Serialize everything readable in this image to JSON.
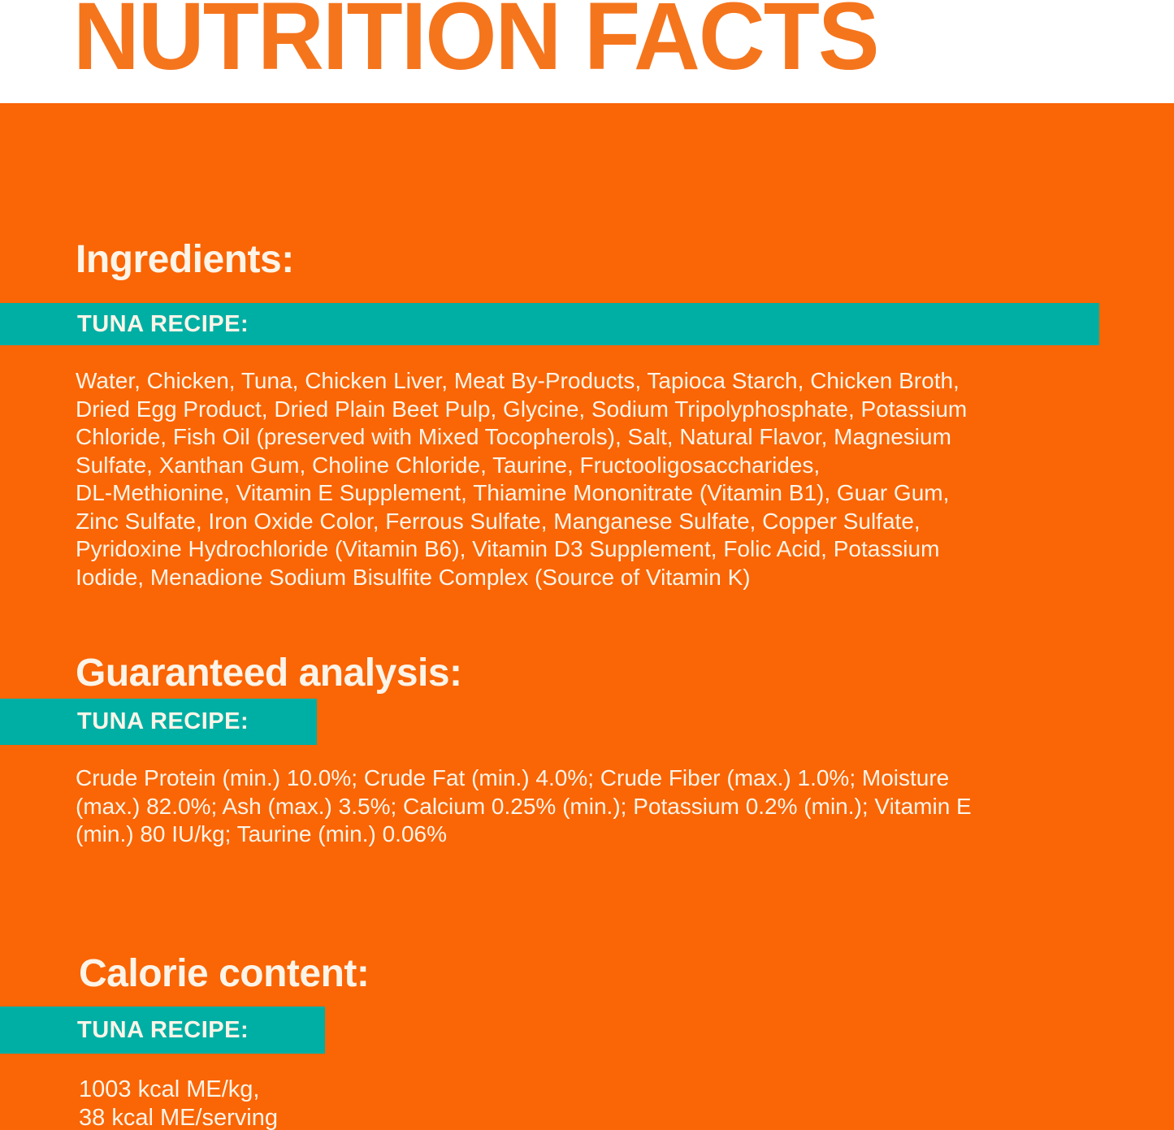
{
  "page": {
    "title": "NUTRITION FACTS",
    "colors": {
      "orange": "#FA6505",
      "title_orange": "#F5751D",
      "teal": "#00AFA4",
      "text": "#FCF4E8",
      "white": "#FFFFFF"
    }
  },
  "sections": {
    "ingredients": {
      "heading": "Ingredients:",
      "recipe_label": "TUNA RECIPE:",
      "body_lines": [
        "Water, Chicken, Tuna, Chicken Liver, Meat By-Products, Tapioca Starch, Chicken Broth,",
        "Dried Egg Product, Dried Plain Beet Pulp, Glycine, Sodium Tripolyphosphate, Potassium",
        "Chloride, Fish Oil (preserved with Mixed Tocopherols), Salt, Natural Flavor, Magnesium",
        "Sulfate, Xanthan Gum, Choline Chloride, Taurine, Fructooligosaccharides,",
        "DL-Methionine, Vitamin E Supplement, Thiamine Mononitrate (Vitamin B1), Guar Gum,",
        "Zinc Sulfate, Iron Oxide Color, Ferrous Sulfate, Manganese Sulfate, Copper Sulfate,",
        "Pyridoxine Hydrochloride (Vitamin B6), Vitamin D3 Supplement, Folic Acid, Potassium",
        "Iodide, Menadione Sodium Bisulfite Complex (Source of Vitamin K)"
      ]
    },
    "guaranteed_analysis": {
      "heading": "Guaranteed analysis:",
      "recipe_label": "TUNA RECIPE:",
      "body_lines": [
        "Crude Protein (min.) 10.0%; Crude Fat (min.) 4.0%; Crude Fiber (max.) 1.0%; Moisture",
        "(max.) 82.0%; Ash (max.) 3.5%; Calcium 0.25% (min.); Potassium 0.2% (min.); Vitamin E",
        "(min.) 80 IU/kg; Taurine (min.) 0.06%"
      ]
    },
    "calorie_content": {
      "heading": "Calorie content:",
      "recipe_label": "TUNA RECIPE:",
      "body_lines": [
        "1003 kcal ME/kg,",
        "38 kcal ME/serving"
      ]
    }
  }
}
